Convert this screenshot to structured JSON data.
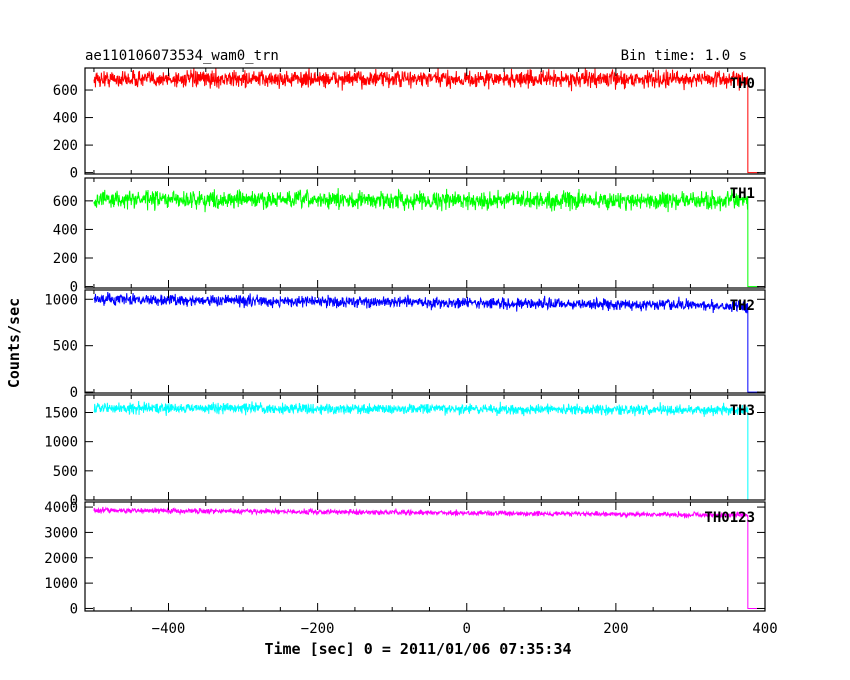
{
  "header": {
    "title": "ae110106073534_wam0_trn",
    "bin_time": "Bin time: 1.0 s"
  },
  "chart_data": {
    "type": "line",
    "xlabel": "Time [sec] 0 = 2011/01/06 07:35:34",
    "ylabel": "Counts/sec",
    "xlim": [
      -512,
      400
    ],
    "x_ticks": [
      -400,
      -200,
      0,
      200,
      400
    ],
    "x_tick_labels": [
      "−400",
      "−200",
      "0",
      "200",
      "400"
    ],
    "data_end_time": 377,
    "series": [
      {
        "name": "TH0",
        "color": "#ff0000",
        "mean": 680,
        "noise": 30,
        "trend": 0,
        "ylim": [
          -10,
          760
        ],
        "y_ticks": [
          0,
          200,
          400,
          600
        ],
        "y_tick_labels": [
          "0",
          "200",
          "400",
          "600"
        ]
      },
      {
        "name": "TH1",
        "color": "#00ff00",
        "mean": 610,
        "noise": 30,
        "trend": -10,
        "ylim": [
          -10,
          760
        ],
        "y_ticks": [
          0,
          200,
          400,
          600
        ],
        "y_tick_labels": [
          "0",
          "200",
          "400",
          "600"
        ]
      },
      {
        "name": "TH2",
        "color": "#0000ff",
        "mean": 1000,
        "noise": 30,
        "trend": -70,
        "ylim": [
          -10,
          1100
        ],
        "y_ticks": [
          0,
          500,
          1000
        ],
        "y_tick_labels": [
          "0",
          "500",
          "1000"
        ]
      },
      {
        "name": "TH3",
        "color": "#00ffff",
        "mean": 1580,
        "noise": 45,
        "trend": -40,
        "ylim": [
          0,
          1800
        ],
        "y_ticks": [
          0,
          500,
          1000,
          1500
        ],
        "y_tick_labels": [
          "0",
          "500",
          "1000",
          "1500"
        ]
      },
      {
        "name": "TH0123",
        "color": "#ff00ff",
        "mean": 3880,
        "noise": 50,
        "trend": -200,
        "ylim": [
          -100,
          4200
        ],
        "y_ticks": [
          0,
          1000,
          2000,
          3000,
          4000
        ],
        "y_tick_labels": [
          "0",
          "1000",
          "2000",
          "3000",
          "4000"
        ]
      }
    ]
  }
}
